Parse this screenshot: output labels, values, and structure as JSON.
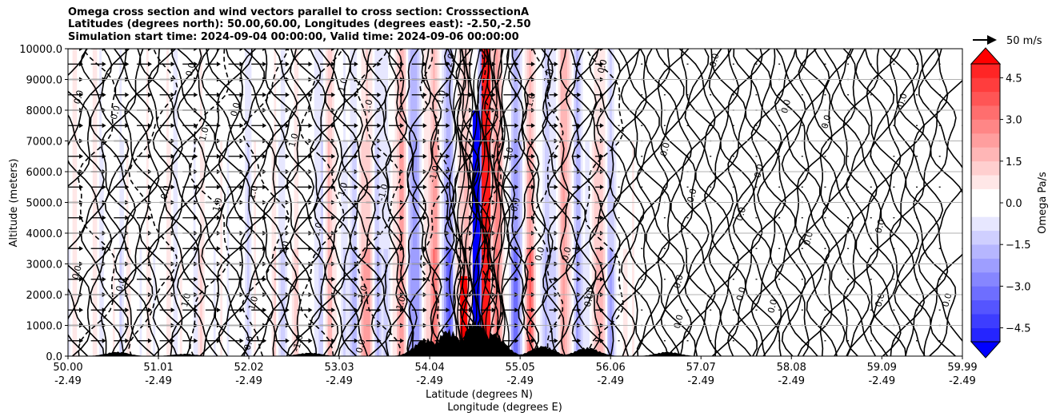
{
  "chart_data": {
    "type": "heatmap",
    "title": [
      "Omega cross section and wind vectors parallel to cross section: CrosssectionA",
      "Latitudes (degrees north): 50.00,60.00, Longitudes (degrees east): -2.50,-2.50",
      "Simulation start time: 2024-09-04 00:00:00, Valid time: 2024-09-06 00:00:00"
    ],
    "xlabel_1": "Latitude (degrees N)",
    "xlabel_2": "Longitude (degrees E)",
    "ylabel": "Altitude (meters)",
    "xlim": [
      50.0,
      59.99
    ],
    "ylim": [
      0,
      10000
    ],
    "x_ticks": [
      {
        "lat": "50.00",
        "lon": "-2.49",
        "value": 50.0
      },
      {
        "lat": "51.01",
        "lon": "-2.49",
        "value": 51.01
      },
      {
        "lat": "52.02",
        "lon": "-2.49",
        "value": 52.02
      },
      {
        "lat": "53.03",
        "lon": "-2.49",
        "value": 53.03
      },
      {
        "lat": "54.04",
        "lon": "-2.49",
        "value": 54.04
      },
      {
        "lat": "55.05",
        "lon": "-2.49",
        "value": 55.05
      },
      {
        "lat": "56.06",
        "lon": "-2.49",
        "value": 56.06
      },
      {
        "lat": "57.07",
        "lon": "-2.49",
        "value": 57.07
      },
      {
        "lat": "58.08",
        "lon": "-2.49",
        "value": 58.08
      },
      {
        "lat": "59.09",
        "lon": "-2.49",
        "value": 59.09
      },
      {
        "lat": "59.99",
        "lon": "-2.49",
        "value": 59.99
      }
    ],
    "y_ticks": [
      {
        "label": "0.0",
        "value": 0
      },
      {
        "label": "1000.0",
        "value": 1000
      },
      {
        "label": "2000.0",
        "value": 2000
      },
      {
        "label": "3000.0",
        "value": 3000
      },
      {
        "label": "4000.0",
        "value": 4000
      },
      {
        "label": "5000.0",
        "value": 5000
      },
      {
        "label": "6000.0",
        "value": 6000
      },
      {
        "label": "7000.0",
        "value": 7000
      },
      {
        "label": "8000.0",
        "value": 8000
      },
      {
        "label": "9000.0",
        "value": 9000
      },
      {
        "label": "10000.0",
        "value": 10000
      }
    ],
    "grid": true,
    "colorbar": {
      "label": "Omega Pa/s",
      "min": -5.0,
      "max": 5.0,
      "levels": 20,
      "extend": "both",
      "cmap": "bwr",
      "ticks": [
        {
          "label": "4.5",
          "value": 4.5
        },
        {
          "label": "3.0",
          "value": 3.0
        },
        {
          "label": "1.5",
          "value": 1.5
        },
        {
          "label": "0.0",
          "value": 0.0
        },
        {
          "label": "−1.5",
          "value": -1.5
        },
        {
          "label": "−3.0",
          "value": -3.0
        },
        {
          "label": "−4.5",
          "value": -4.5
        }
      ]
    },
    "quiver_key": {
      "label": "50 m/s",
      "value": 50
    },
    "contour_labels": [
      {
        "text": "0.0",
        "lat": 50.15,
        "alt": 8400
      },
      {
        "text": "0.0",
        "lat": 50.13,
        "alt": 2700
      },
      {
        "text": "0.0",
        "lat": 50.62,
        "alt": 2300
      },
      {
        "text": "0.0",
        "lat": 50.56,
        "alt": 7900
      },
      {
        "text": "0.0",
        "lat": 51.4,
        "alt": 9300
      },
      {
        "text": "0.0",
        "lat": 51.12,
        "alt": 5300
      },
      {
        "text": "1.0",
        "lat": 51.55,
        "alt": 7200
      },
      {
        "text": "1.0",
        "lat": 51.7,
        "alt": 4900
      },
      {
        "text": "1.0",
        "lat": 51.35,
        "alt": 1800
      },
      {
        "text": "0.0",
        "lat": 51.9,
        "alt": 8000
      },
      {
        "text": "1.0",
        "lat": 52.1,
        "alt": 1700
      },
      {
        "text": "0.0",
        "lat": 52.05,
        "alt": 400
      },
      {
        "text": "1.0",
        "lat": 52.1,
        "alt": 5300
      },
      {
        "text": "2.0",
        "lat": 52.45,
        "alt": 3500
      },
      {
        "text": "-1.0",
        "lat": 52.6,
        "alt": 400
      },
      {
        "text": "1.0",
        "lat": 52.55,
        "alt": 7000
      },
      {
        "text": "1.0",
        "lat": 52.82,
        "alt": 4100
      },
      {
        "text": "1.0",
        "lat": 53.1,
        "alt": 8800
      },
      {
        "text": "1.0",
        "lat": 53.1,
        "alt": 5400
      },
      {
        "text": "0.0",
        "lat": 53.3,
        "alt": 300
      },
      {
        "text": "1.0",
        "lat": 53.38,
        "alt": 8100
      },
      {
        "text": "-1.0",
        "lat": 53.55,
        "alt": 5300
      },
      {
        "text": "-1.0",
        "lat": 53.32,
        "alt": 2000
      },
      {
        "text": "1.0",
        "lat": 53.75,
        "alt": 1700
      },
      {
        "text": "1.0",
        "lat": 54.2,
        "alt": 8400
      },
      {
        "text": "-1.0",
        "lat": 54.12,
        "alt": 5900
      },
      {
        "text": "2.0",
        "lat": 54.3,
        "alt": 9600
      },
      {
        "text": "0.0",
        "lat": 55.03,
        "alt": 4900
      },
      {
        "text": "-1.0",
        "lat": 54.95,
        "alt": 6500
      },
      {
        "text": "1.0",
        "lat": 55.2,
        "alt": 8300
      },
      {
        "text": "1.0",
        "lat": 55.4,
        "alt": 9100
      },
      {
        "text": "0.0",
        "lat": 55.3,
        "alt": 3300
      },
      {
        "text": "0.0",
        "lat": 55.6,
        "alt": 3300
      },
      {
        "text": "1.0",
        "lat": 55.85,
        "alt": 2000
      },
      {
        "text": "0.0",
        "lat": 55.85,
        "alt": 1800
      },
      {
        "text": "0.0",
        "lat": 56.0,
        "alt": 9400
      },
      {
        "text": "0.0",
        "lat": 56.7,
        "alt": 6700
      },
      {
        "text": "0.0",
        "lat": 56.85,
        "alt": 2400
      },
      {
        "text": "0.0",
        "lat": 56.85,
        "alt": 1100
      },
      {
        "text": "0.0",
        "lat": 57.0,
        "alt": 5200
      },
      {
        "text": "0.0",
        "lat": 57.25,
        "alt": 9600
      },
      {
        "text": "0.0",
        "lat": 57.55,
        "alt": 4600
      },
      {
        "text": "0.0",
        "lat": 57.55,
        "alt": 2000
      },
      {
        "text": "0.0",
        "lat": 57.75,
        "alt": 6000
      },
      {
        "text": "0.0",
        "lat": 58.05,
        "alt": 8100
      },
      {
        "text": "0.0",
        "lat": 58.5,
        "alt": 7600
      },
      {
        "text": "0.0",
        "lat": 58.3,
        "alt": 3800
      },
      {
        "text": "0.0",
        "lat": 59.1,
        "alt": 4200
      },
      {
        "text": "0.0",
        "lat": 59.35,
        "alt": 8300
      },
      {
        "text": "0.0",
        "lat": 59.1,
        "alt": 1800
      },
      {
        "text": "0.0",
        "lat": 59.85,
        "alt": 1800
      },
      {
        "text": "0.0",
        "lat": 57.9,
        "alt": 1600
      }
    ],
    "terrain_peaks": [
      {
        "lat": 50.55,
        "alt": 150
      },
      {
        "lat": 51.3,
        "alt": 80
      },
      {
        "lat": 52.7,
        "alt": 120
      },
      {
        "lat": 54.0,
        "alt": 600
      },
      {
        "lat": 54.25,
        "alt": 900
      },
      {
        "lat": 54.55,
        "alt": 1200
      },
      {
        "lat": 54.75,
        "alt": 800
      },
      {
        "lat": 55.3,
        "alt": 350
      },
      {
        "lat": 55.8,
        "alt": 300
      },
      {
        "lat": 56.7,
        "alt": 150
      }
    ],
    "colors": {
      "positive": "#ff0000",
      "negative": "#0000ff",
      "neutral_pos": "#fff0f0",
      "neutral_neg": "#f0f0ff"
    }
  }
}
